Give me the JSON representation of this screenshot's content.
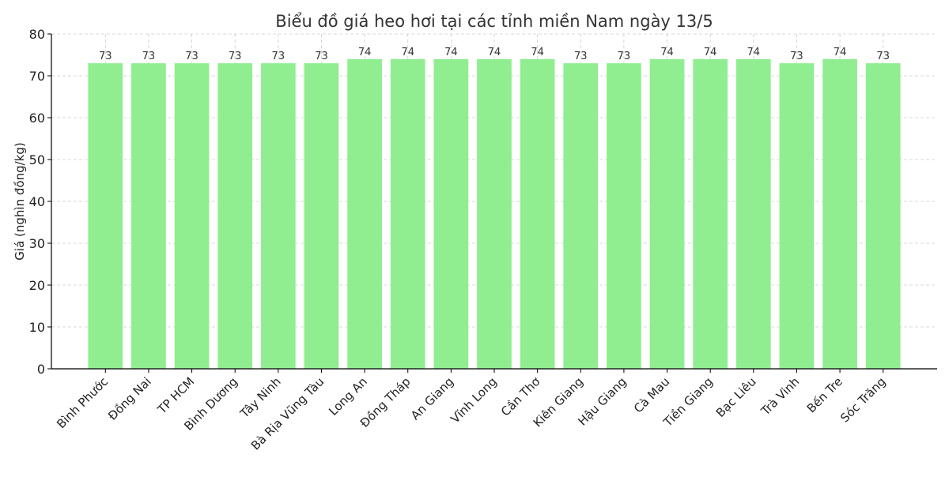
{
  "chart_data": {
    "type": "bar",
    "title": "Biểu đồ giá heo hơi tại các tỉnh miền Nam ngày 13/5",
    "xlabel": "",
    "ylabel": "Giá (nghìn đồng/kg)",
    "ylim": [
      0,
      80
    ],
    "yticks": [
      "0",
      "10",
      "20",
      "30",
      "40",
      "50",
      "60",
      "70",
      "80"
    ],
    "grid": true,
    "bar_color": "#90ee90",
    "categories": [
      "Bình Phước",
      "Đồng Nai",
      "TP HCM",
      "Bình Dương",
      "Tây Ninh",
      "Bà Rịa  Vũng Tàu",
      "Long An",
      "Đồng Tháp",
      "An Giang",
      "Vĩnh Long",
      "Cần Thơ",
      "Kiên Giang",
      "Hậu Giang",
      "Cà Mau",
      "Tiền Giang",
      "Bạc Liêu",
      "Trà Vinh",
      "Bến Tre",
      "Sóc Trăng"
    ],
    "values": [
      73,
      73,
      73,
      73,
      73,
      73,
      74,
      74,
      74,
      74,
      74,
      73,
      73,
      74,
      74,
      74,
      73,
      74,
      73
    ],
    "value_labels": [
      "73",
      "73",
      "73",
      "73",
      "73",
      "73",
      "74",
      "74",
      "74",
      "74",
      "74",
      "73",
      "73",
      "74",
      "74",
      "74",
      "73",
      "74",
      "73"
    ]
  }
}
